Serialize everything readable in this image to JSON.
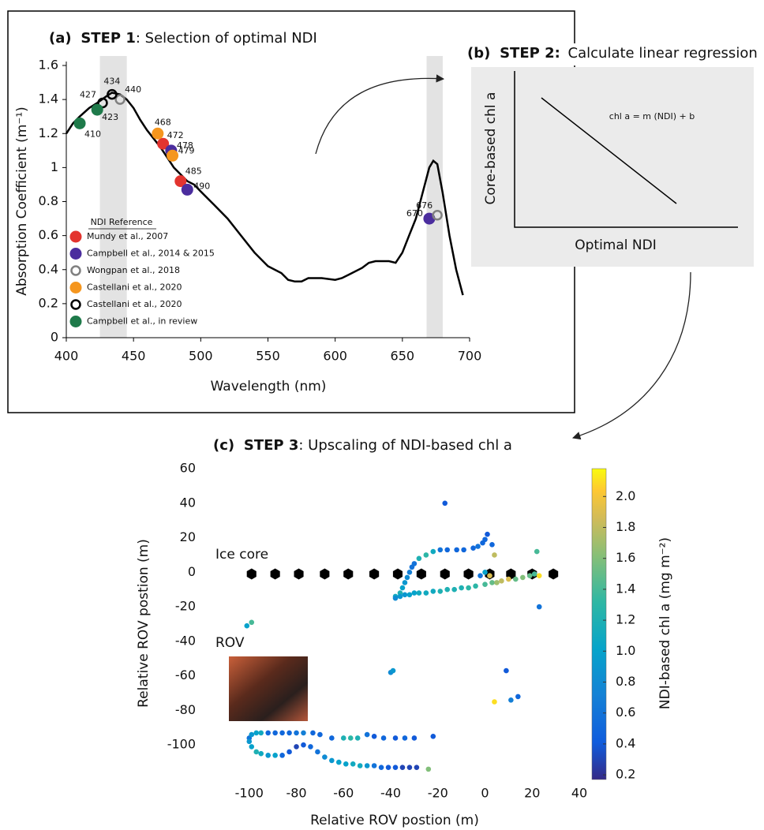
{
  "chart_data": [
    {
      "type": "line",
      "label": "(a)",
      "step": "STEP 1",
      "title": ": Selection of optimal NDI",
      "x_label": "Wavelength (nm)",
      "y_label": "Absorption Coefficient (m⁻¹)",
      "xlim": [
        400,
        700
      ],
      "ylim": [
        0,
        1.6
      ],
      "xticks": [
        400,
        450,
        500,
        550,
        600,
        650,
        700
      ],
      "yticks": [
        0,
        0.2,
        0.4,
        0.6,
        0.8,
        1,
        1.2,
        1.4,
        1.6
      ],
      "color": "#000000",
      "highlight_ranges": [
        [
          425,
          445
        ],
        [
          668,
          680
        ]
      ],
      "x": [
        400,
        405,
        410,
        417,
        423,
        430,
        434,
        440,
        445,
        450,
        455,
        460,
        465,
        470,
        475,
        480,
        485,
        490,
        495,
        500,
        510,
        520,
        530,
        540,
        550,
        560,
        565,
        570,
        575,
        580,
        590,
        600,
        605,
        610,
        620,
        625,
        630,
        640,
        645,
        650,
        655,
        660,
        665,
        670,
        673,
        676,
        680,
        685,
        690,
        695
      ],
      "values": [
        1.2,
        1.26,
        1.3,
        1.35,
        1.38,
        1.42,
        1.44,
        1.43,
        1.4,
        1.35,
        1.28,
        1.22,
        1.17,
        1.12,
        1.06,
        1.0,
        0.96,
        0.92,
        0.9,
        0.86,
        0.78,
        0.7,
        0.6,
        0.5,
        0.42,
        0.38,
        0.34,
        0.33,
        0.33,
        0.35,
        0.35,
        0.34,
        0.35,
        0.37,
        0.41,
        0.44,
        0.45,
        0.45,
        0.44,
        0.5,
        0.6,
        0.7,
        0.85,
        1.0,
        1.04,
        1.02,
        0.85,
        0.6,
        0.4,
        0.25
      ],
      "legend_title": "NDI Reference",
      "markers": [
        {
          "name": "Mundy et al., 2007",
          "color": "#e3342f",
          "style": "filled",
          "x": [
            472,
            485
          ],
          "values": [
            1.14,
            0.92
          ]
        },
        {
          "name": "Campbell et al., 2014 & 2015",
          "color": "#4b2d9e",
          "style": "filled",
          "x": [
            478,
            490,
            670
          ],
          "values": [
            1.1,
            0.87,
            0.7
          ]
        },
        {
          "name": "Wongpan et al., 2018",
          "color": "#808080",
          "style": "ring",
          "x": [
            440,
            676
          ],
          "values": [
            1.4,
            0.72
          ]
        },
        {
          "name": "Castellani et al., 2020",
          "color": "#f5961e",
          "style": "filled",
          "x": [
            468,
            479
          ],
          "values": [
            1.2,
            1.07
          ]
        },
        {
          "name": "Castellani et al., 2020",
          "color": "#000000",
          "style": "ring",
          "x": [
            427,
            434
          ],
          "values": [
            1.38,
            1.43
          ]
        },
        {
          "name": "Campbell et al., in review",
          "color": "#1e7a4a",
          "style": "filled",
          "x": [
            410,
            423
          ],
          "values": [
            1.26,
            1.34
          ]
        }
      ]
    },
    {
      "type": "schematic",
      "label": "(b)",
      "step": "STEP 2:",
      "title": "Calculate linear regression",
      "x_label": "Optimal NDI",
      "y_label": "Core-based chl a",
      "equation": "chl a = m (NDI) + b"
    },
    {
      "type": "scatter",
      "label": "(c)",
      "step": "STEP 3",
      "title": ": Upscaling of NDI-based chl a",
      "x_label": "Relative ROV postion (m)",
      "y_label": "Relative ROV postion (m)",
      "xlim": [
        -117,
        40
      ],
      "ylim": [
        -120,
        60
      ],
      "xticks": [
        -100,
        -80,
        -60,
        -40,
        -20,
        0,
        20,
        40
      ],
      "yticks": [
        -100,
        -80,
        -60,
        -40,
        -20,
        0,
        20,
        40,
        60
      ],
      "colormap": "parula",
      "clim": [
        0.17,
        2.18
      ],
      "cticks": [
        0.2,
        0.4,
        0.6,
        0.8,
        {
          "value": 1,
          "label": "1.0"
        },
        1.2,
        1.4,
        1.6,
        1.8,
        {
          "value": 2,
          "label": "2.0"
        }
      ],
      "colorbar_label": "NDI-based chl a (mg m⁻²)",
      "series": [
        {
          "name": "Ice core",
          "color": "#000000",
          "marker": "hexagon",
          "x": [
            -99,
            -89,
            -79,
            -68,
            -58,
            -47,
            -37,
            -27,
            -17,
            -7,
            2,
            11,
            20,
            29
          ],
          "values": [
            -1,
            -1,
            -1,
            -1,
            -1,
            -1,
            -1,
            -1,
            -1,
            -1,
            -1,
            -1,
            -1,
            -1
          ]
        },
        {
          "name": "ROV",
          "marker": "circle",
          "x": [
            -38,
            -36,
            -35,
            -34,
            -33,
            -32,
            -31,
            -30,
            -28,
            -25,
            -22,
            -19,
            -16,
            -12,
            -9,
            -5,
            -3,
            -1,
            0,
            1,
            3,
            4,
            -17,
            0,
            -2,
            -38,
            -36,
            -34,
            -32,
            -30,
            -28,
            -25,
            -22,
            -19,
            -16,
            -13,
            -10,
            -7,
            -4,
            0,
            3,
            5,
            7,
            10,
            13,
            16,
            19,
            21,
            23,
            22,
            23,
            2,
            -101,
            -99,
            -40,
            -39,
            9,
            4,
            11,
            14,
            -100,
            -99,
            -97,
            -95,
            -92,
            -89,
            -86,
            -83,
            -80,
            -77,
            -73,
            -70,
            -65,
            -60,
            -57,
            -54,
            -50,
            -47,
            -43,
            -38,
            -34,
            -30,
            -22,
            -100,
            -99,
            -97,
            -95,
            -92,
            -89,
            -86,
            -83,
            -80,
            -77,
            -74,
            -71,
            -68,
            -65,
            -62,
            -59,
            -56,
            -53,
            -50,
            -47,
            -44,
            -41,
            -38,
            -35,
            -32,
            -29,
            -24
          ],
          "values": [
            -14,
            -12,
            -9,
            -6,
            -3,
            0,
            3,
            5,
            8,
            10,
            12,
            13,
            13,
            13,
            13,
            14,
            15,
            17,
            19,
            22,
            16,
            10,
            40,
            0,
            -2,
            -15,
            -14,
            -13,
            -13,
            -12,
            -12,
            -12,
            -11,
            -11,
            -10,
            -10,
            -9,
            -9,
            -8,
            -7,
            -6,
            -6,
            -5,
            -4,
            -4,
            -3,
            -2,
            -1,
            -2,
            12,
            -20,
            -2,
            -31,
            -29,
            -58,
            -57,
            -57,
            -75,
            -74,
            -72,
            -96,
            -94,
            -93,
            -93,
            -93,
            -93,
            -93,
            -93,
            -93,
            -93,
            -93,
            -94,
            -96,
            -96,
            -96,
            -96,
            -94,
            -95,
            -96,
            -96,
            -96,
            -96,
            -95,
            -98,
            -101,
            -104,
            -105,
            -106,
            -106,
            -106,
            -104,
            -101,
            -100,
            -101,
            -104,
            -107,
            -109,
            -110,
            -111,
            -111,
            -112,
            -112,
            -112,
            -113,
            -113,
            -113,
            -113,
            -113,
            -113,
            -114
          ],
          "c": [
            1.1,
            1.2,
            1.0,
            0.9,
            0.8,
            0.7,
            0.6,
            0.6,
            1.2,
            1.3,
            1.1,
            0.6,
            0.5,
            0.5,
            0.5,
            0.5,
            0.6,
            0.5,
            0.5,
            0.4,
            0.5,
            1.8,
            0.4,
            1.0,
            0.6,
            0.8,
            0.9,
            0.9,
            1.0,
            1.0,
            1.1,
            1.1,
            1.1,
            1.2,
            1.2,
            1.2,
            1.2,
            1.3,
            1.3,
            1.4,
            1.5,
            1.7,
            1.8,
            1.9,
            1.5,
            1.6,
            1.5,
            1.4,
            2.1,
            1.4,
            0.6,
            1.9,
            1.0,
            1.4,
            0.8,
            0.9,
            0.4,
            2.1,
            0.7,
            0.5,
            0.6,
            0.9,
            1.0,
            1.1,
            0.5,
            0.5,
            0.5,
            0.5,
            0.6,
            0.7,
            0.5,
            0.5,
            0.5,
            1.2,
            1.3,
            1.2,
            0.6,
            0.4,
            0.5,
            0.4,
            0.5,
            0.4,
            0.4,
            0.9,
            1.0,
            1.2,
            1.1,
            0.9,
            1.0,
            0.5,
            0.4,
            0.3,
            0.4,
            0.5,
            0.6,
            0.8,
            0.9,
            1.0,
            1.0,
            1.1,
            1.1,
            0.9,
            0.6,
            0.5,
            0.4,
            0.4,
            0.3,
            0.3,
            0.3,
            1.6
          ]
        }
      ]
    }
  ]
}
